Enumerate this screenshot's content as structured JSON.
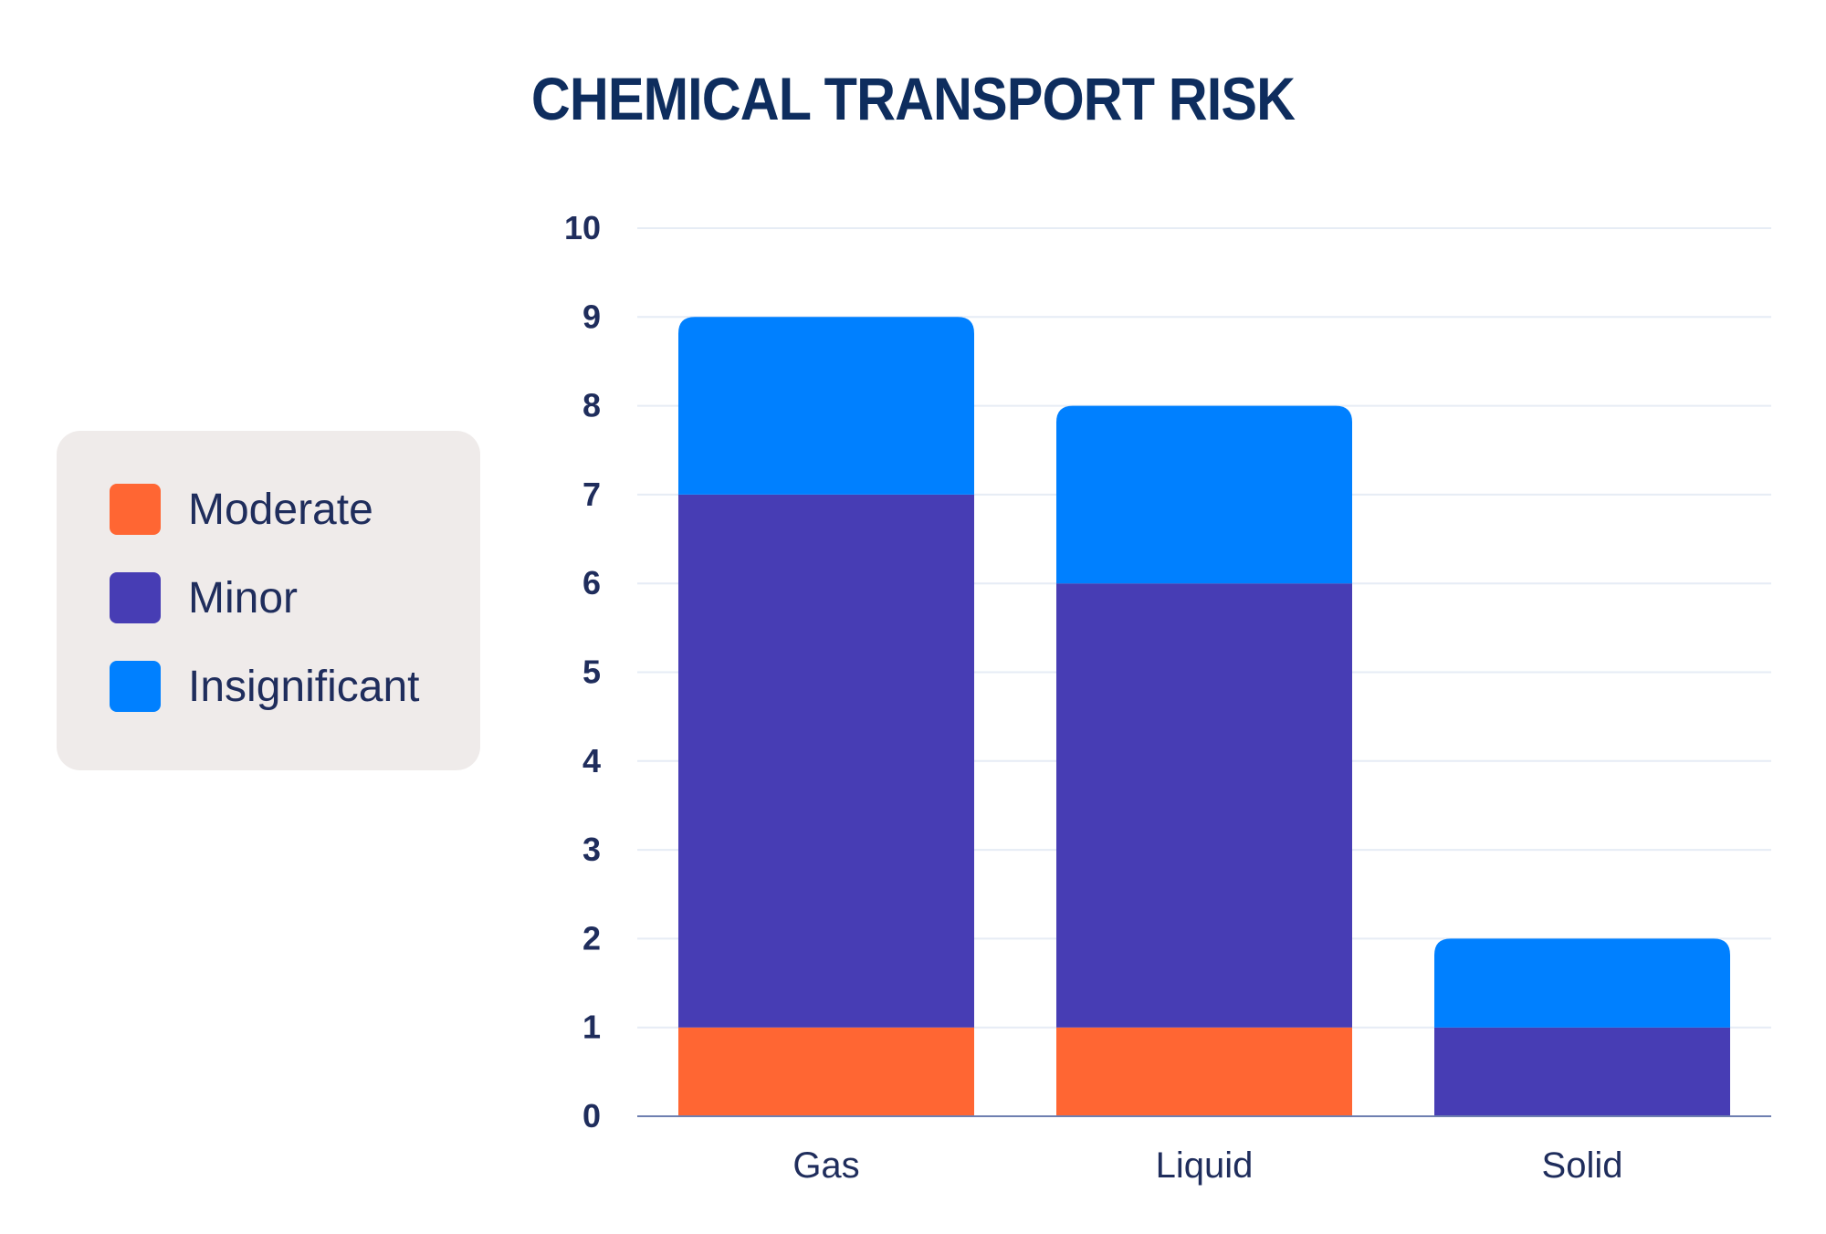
{
  "chart_data": {
    "type": "bar",
    "stacked": true,
    "title": "CHEMICAL TRANSPORT RISK",
    "xlabel": "",
    "ylabel": "",
    "categories": [
      "Gas",
      "Liquid",
      "Solid"
    ],
    "series": [
      {
        "name": "Moderate",
        "values": [
          1,
          1,
          0
        ],
        "color": "#ff6633"
      },
      {
        "name": "Minor",
        "values": [
          6,
          5,
          1
        ],
        "color": "#473db4"
      },
      {
        "name": "Insignificant",
        "values": [
          2,
          2,
          1
        ],
        "color": "#0080ff"
      }
    ],
    "ylim": [
      0,
      10
    ],
    "yticks": [
      "0",
      "1",
      "2",
      "3",
      "4",
      "5",
      "6",
      "7",
      "8",
      "9",
      "10"
    ],
    "grid": true,
    "legend_position": "left"
  },
  "colors": {
    "title": "#0e2d5e",
    "axis_text": "#1f2d5c",
    "gridline": "#e6ecf5",
    "baseline": "#6e7fb0",
    "legend_bg": "#efebea"
  }
}
